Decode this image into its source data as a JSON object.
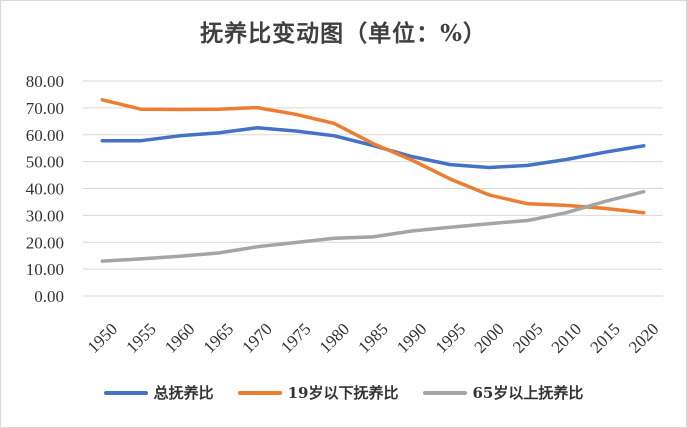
{
  "chart_data": {
    "type": "line",
    "title": "抚养比变动图（单位：%）",
    "xlabel": "",
    "ylabel": "",
    "ylim": [
      0,
      80
    ],
    "yticks": [
      "0.00",
      "10.00",
      "20.00",
      "30.00",
      "40.00",
      "50.00",
      "60.00",
      "70.00",
      "80.00"
    ],
    "categories": [
      "1950",
      "1955",
      "1960",
      "1965",
      "1970",
      "1975",
      "1980",
      "1985",
      "1990",
      "1995",
      "2000",
      "2005",
      "2010",
      "2015",
      "2020"
    ],
    "grid": true,
    "legend_position": "bottom",
    "series": [
      {
        "name": "总抚养比",
        "color": "#4472C4",
        "values": [
          57.8,
          57.8,
          59.6,
          60.7,
          62.6,
          61.4,
          59.6,
          56.0,
          51.9,
          48.9,
          47.8,
          48.6,
          50.8,
          53.5,
          55.9
        ]
      },
      {
        "name": "19岁以下抚养比",
        "color": "#ED7D31",
        "values": [
          73.0,
          69.5,
          69.4,
          69.5,
          70.1,
          67.6,
          64.2,
          56.7,
          50.6,
          43.5,
          37.6,
          34.3,
          33.7,
          32.6,
          31.0
        ]
      },
      {
        "name": "65岁以上抚养比",
        "color": "#A5A5A5",
        "values": [
          13.0,
          13.8,
          14.8,
          16.0,
          18.3,
          19.9,
          21.5,
          22.0,
          24.2,
          25.6,
          26.9,
          28.1,
          31.0,
          35.2,
          38.8
        ]
      }
    ]
  }
}
